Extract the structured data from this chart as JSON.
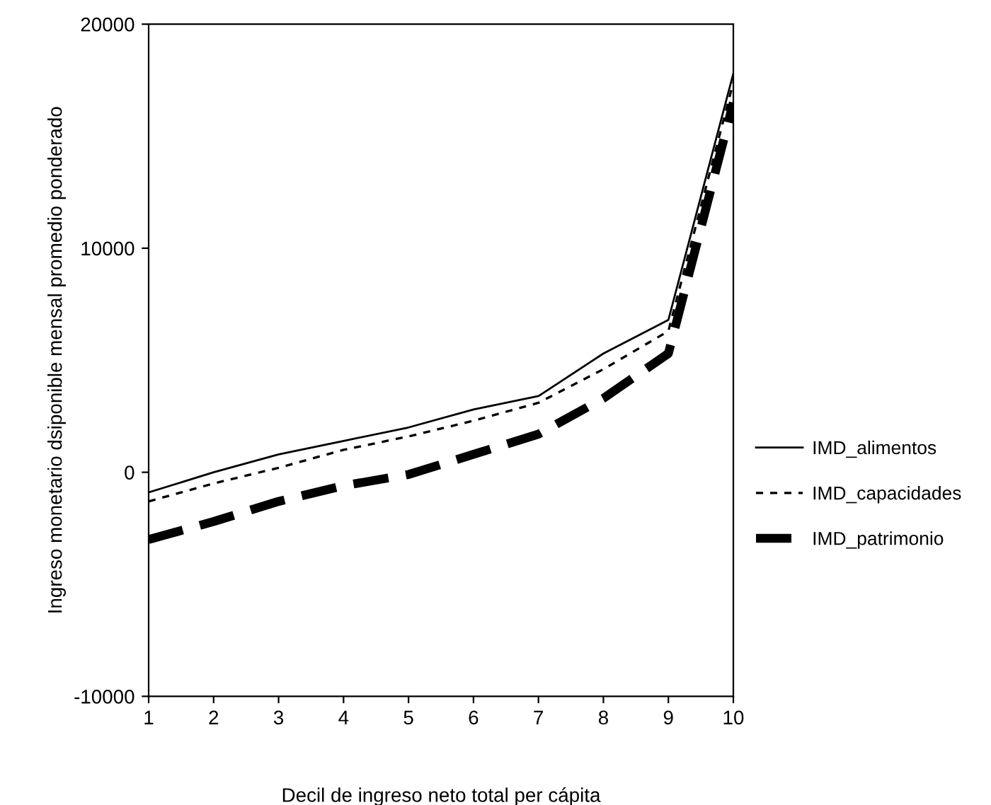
{
  "chart_data": {
    "type": "line",
    "xlabel": "Decil de ingreso neto total per cápita",
    "ylabel": "Ingreso monetario dsiponible mensal promedio ponderado",
    "x": [
      1,
      2,
      3,
      4,
      5,
      6,
      7,
      8,
      9,
      10
    ],
    "series": [
      {
        "name": "IMD_alimentos",
        "color": "#000000",
        "line_style": "solid",
        "values": [
          -900,
          0,
          800,
          1400,
          2000,
          2800,
          3400,
          5300,
          6800,
          17800
        ]
      },
      {
        "name": "IMD_capacidades",
        "color": "#000000",
        "line_style": "dotted",
        "values": [
          -1300,
          -500,
          200,
          1000,
          1600,
          2300,
          3100,
          4600,
          6300,
          17400
        ]
      },
      {
        "name": "IMD_patrimonio",
        "color": "#000000",
        "line_style": "dashed",
        "values": [
          -3000,
          -2200,
          -1300,
          -600,
          -100,
          800,
          1700,
          3300,
          5300,
          16500
        ]
      }
    ],
    "xlim": [
      1,
      10
    ],
    "xticks": [
      1,
      2,
      3,
      4,
      5,
      6,
      7,
      8,
      9,
      10
    ],
    "ylim": [
      -10000,
      20000
    ],
    "yticks": [
      -10000,
      0,
      10000,
      20000
    ],
    "grid": false,
    "legend": "right",
    "marker": "none"
  }
}
